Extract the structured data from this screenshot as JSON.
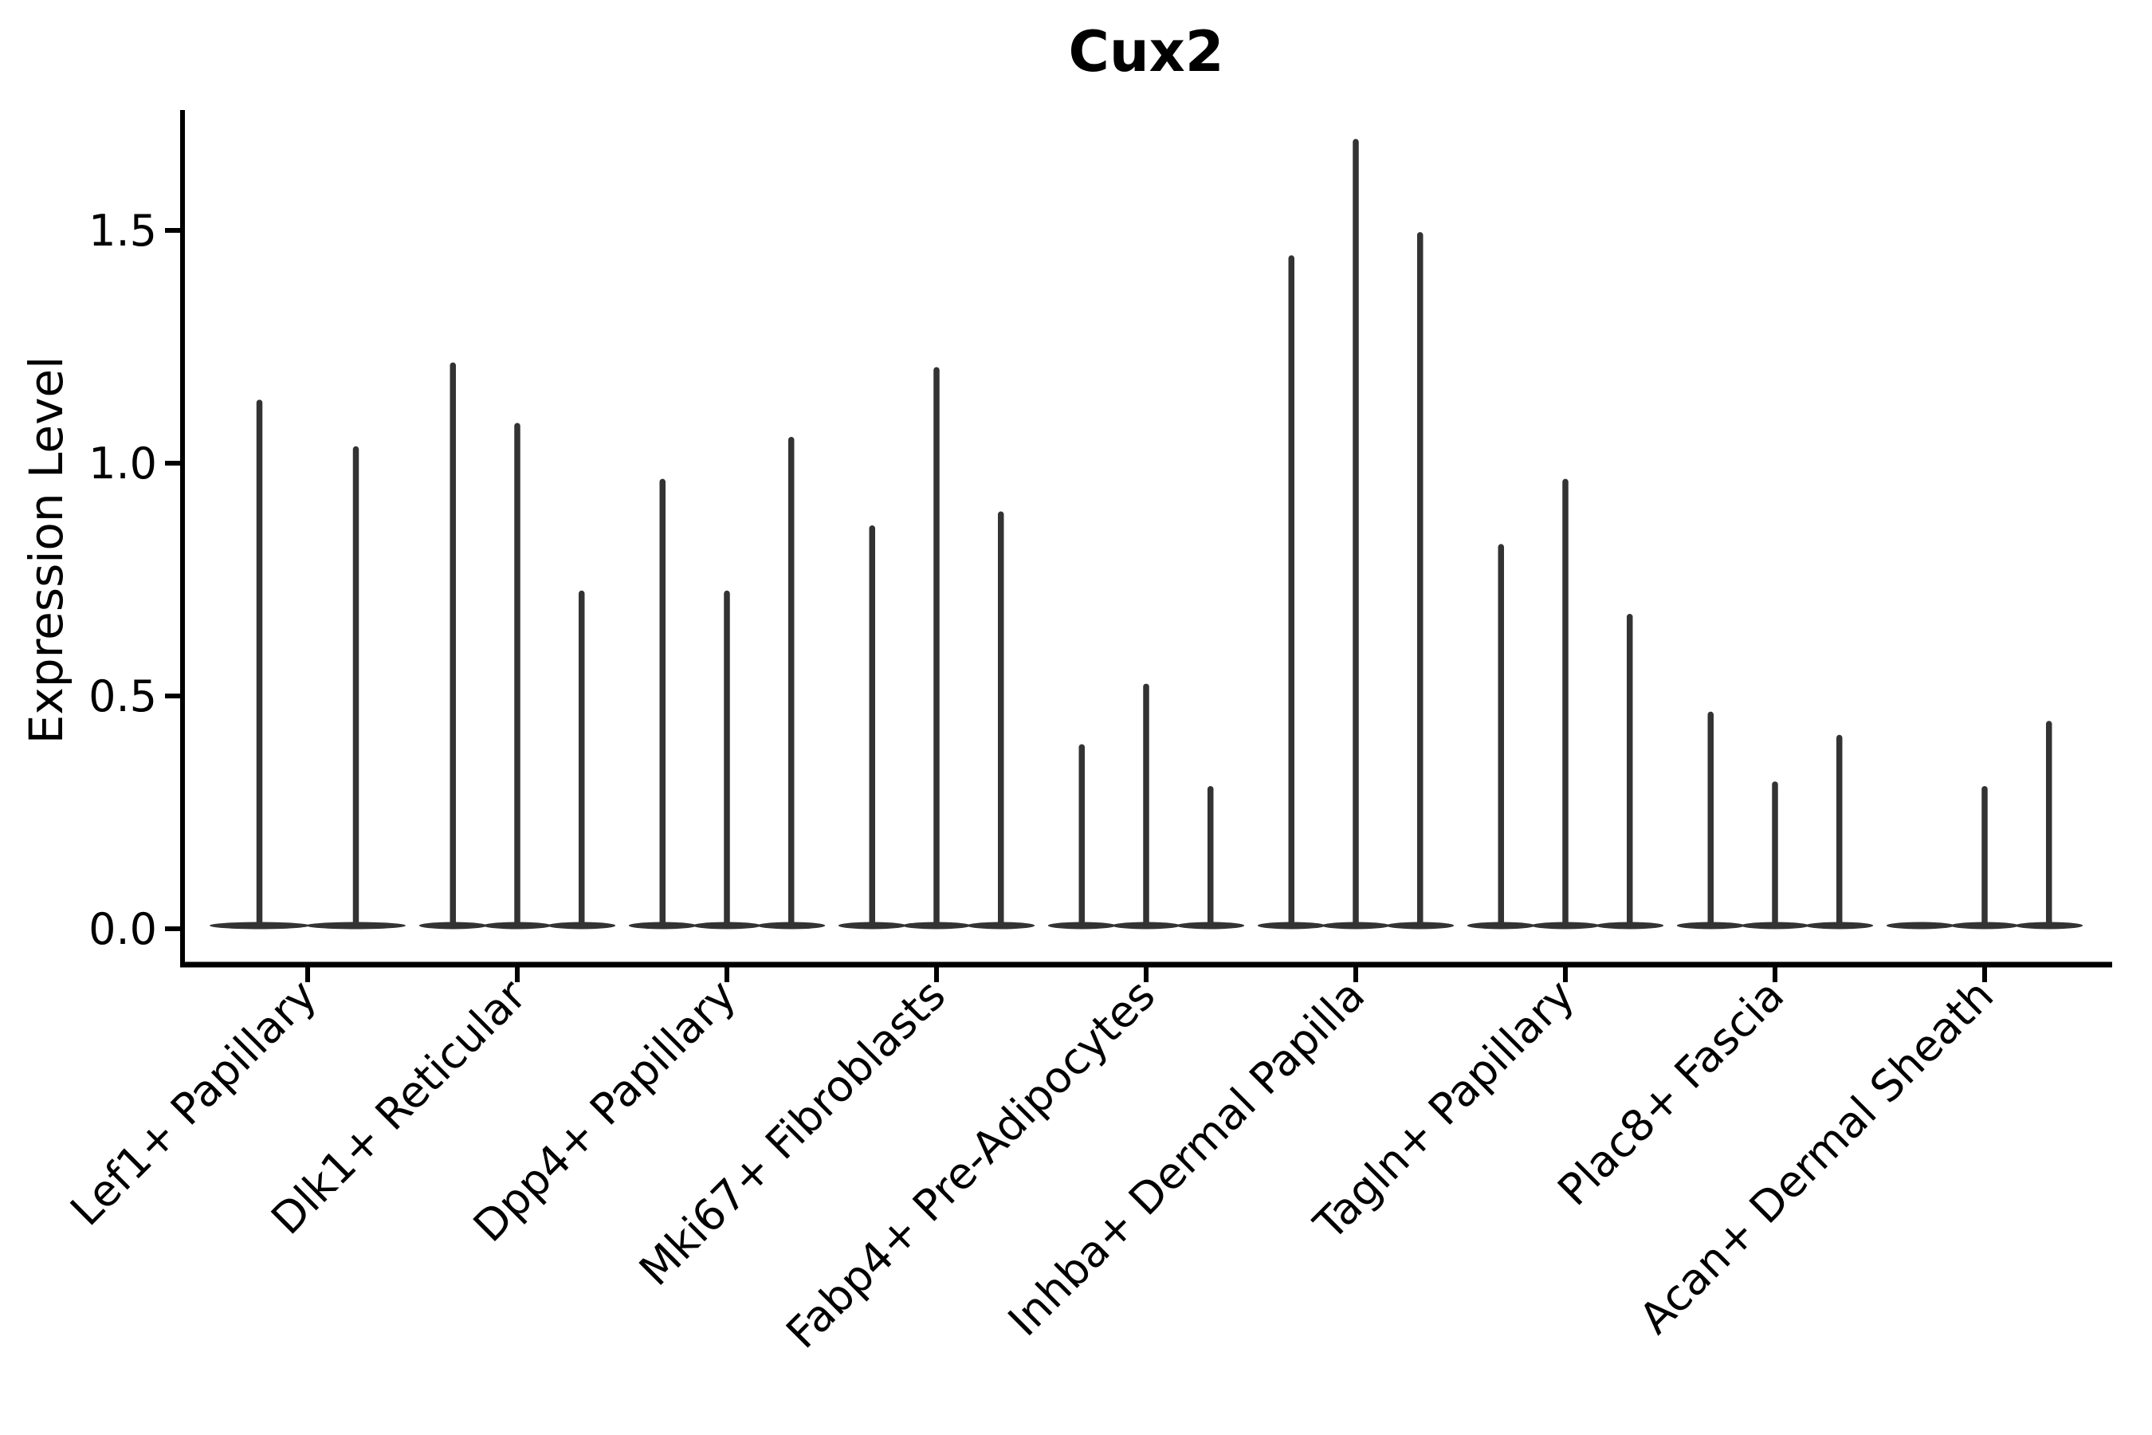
{
  "title": "Cux2",
  "chart_data": {
    "type": "violin",
    "title": "Cux2",
    "ylabel": "Expression Level",
    "xlabel": "",
    "yticks": [
      0.0,
      0.5,
      1.0,
      1.5
    ],
    "ylim": [
      -0.08,
      1.77
    ],
    "grid": false,
    "legend": null,
    "violin_color": "#333333",
    "axis_color": "#000000",
    "x_tick_rotation_deg": 45,
    "categories": [
      "Lef1+ Papillary",
      "Dlk1+ Reticular",
      "Dpp4+ Papillary",
      "Mki67+ Fibroblasts",
      "Fabp4+ Pre-Adipocytes",
      "Inhba+ Dermal Papilla",
      "Tagln+ Papillary",
      "Plac8+ Fascia",
      "Acan+ Dermal Sheath"
    ],
    "groups": [
      {
        "label": "Lef1+ Papillary",
        "offsets": [
          -0.23,
          0.23
        ],
        "violin_width": 0.46,
        "maxima": [
          1.13,
          1.03
        ]
      },
      {
        "label": "Dlk1+ Reticular",
        "offsets": [
          -0.307,
          0.0,
          0.307
        ],
        "violin_width": 0.307,
        "maxima": [
          1.21,
          1.08,
          0.72
        ]
      },
      {
        "label": "Dpp4+ Papillary",
        "offsets": [
          -0.307,
          0.0,
          0.307
        ],
        "violin_width": 0.307,
        "maxima": [
          0.96,
          0.72,
          1.05
        ]
      },
      {
        "label": "Mki67+ Fibroblasts",
        "offsets": [
          -0.307,
          0.0,
          0.307
        ],
        "violin_width": 0.307,
        "maxima": [
          0.86,
          1.2,
          0.89
        ]
      },
      {
        "label": "Fabp4+ Pre-Adipocytes",
        "offsets": [
          -0.307,
          0.0,
          0.307
        ],
        "violin_width": 0.307,
        "maxima": [
          0.39,
          0.52,
          0.3
        ]
      },
      {
        "label": "Inhba+ Dermal Papilla",
        "offsets": [
          -0.307,
          0.0,
          0.307
        ],
        "violin_width": 0.307,
        "maxima": [
          1.44,
          1.69,
          1.49
        ]
      },
      {
        "label": "Tagln+ Papillary",
        "offsets": [
          -0.307,
          0.0,
          0.307
        ],
        "violin_width": 0.307,
        "maxima": [
          0.82,
          0.96,
          0.67
        ]
      },
      {
        "label": "Plac8+ Fascia",
        "offsets": [
          -0.307,
          0.0,
          0.307
        ],
        "violin_width": 0.307,
        "maxima": [
          0.46,
          0.31,
          0.41
        ]
      },
      {
        "label": "Acan+ Dermal Sheath",
        "offsets": [
          -0.307,
          0.0,
          0.307
        ],
        "violin_width": 0.307,
        "maxima": [
          0.0,
          0.3,
          0.44
        ]
      }
    ]
  }
}
